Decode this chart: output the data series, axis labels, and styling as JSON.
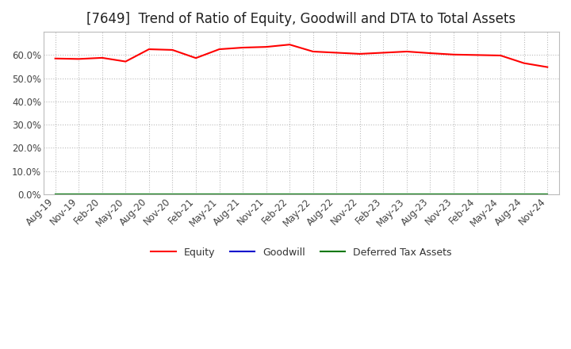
{
  "title": "[7649]  Trend of Ratio of Equity, Goodwill and DTA to Total Assets",
  "x_labels": [
    "Aug-19",
    "Nov-19",
    "Feb-20",
    "May-20",
    "Aug-20",
    "Nov-20",
    "Feb-21",
    "May-21",
    "Aug-21",
    "Nov-21",
    "Feb-22",
    "May-22",
    "Aug-22",
    "Nov-22",
    "Feb-23",
    "May-23",
    "Aug-23",
    "Nov-23",
    "Feb-24",
    "May-24",
    "Aug-24",
    "Nov-24"
  ],
  "equity": [
    58.5,
    58.3,
    58.8,
    57.2,
    62.5,
    62.2,
    58.7,
    62.5,
    63.2,
    63.5,
    64.5,
    61.5,
    61.0,
    60.5,
    61.0,
    61.5,
    60.8,
    60.2,
    60.0,
    59.8,
    56.5,
    54.8
  ],
  "goodwill": [
    0.0,
    0.0,
    0.0,
    0.0,
    0.0,
    0.0,
    0.0,
    0.0,
    0.0,
    0.0,
    0.0,
    0.0,
    0.0,
    0.0,
    0.0,
    0.0,
    0.0,
    0.0,
    0.0,
    0.0,
    0.0,
    0.0
  ],
  "dta": [
    0.0,
    0.0,
    0.0,
    0.0,
    0.0,
    0.0,
    0.0,
    0.0,
    0.0,
    0.0,
    0.0,
    0.0,
    0.0,
    0.0,
    0.0,
    0.0,
    0.0,
    0.0,
    0.0,
    0.0,
    0.0,
    0.0
  ],
  "equity_color": "#ff0000",
  "goodwill_color": "#0000cc",
  "dta_color": "#007700",
  "ylim": [
    0,
    70
  ],
  "yticks": [
    0,
    10,
    20,
    30,
    40,
    50,
    60
  ],
  "background_color": "#ffffff",
  "grid_color": "#bbbbbb",
  "title_fontsize": 12,
  "tick_fontsize": 8.5,
  "legend_labels": [
    "Equity",
    "Goodwill",
    "Deferred Tax Assets"
  ]
}
